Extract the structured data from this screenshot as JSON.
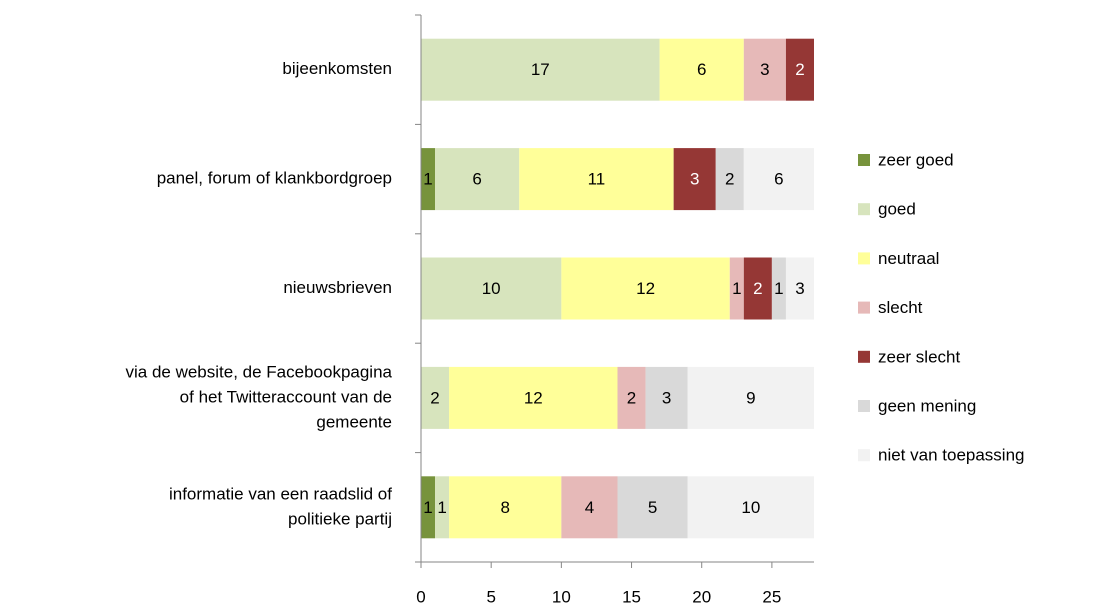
{
  "chart_data": {
    "type": "stacked-barh",
    "categories": [
      [
        "bijeenkomsten"
      ],
      [
        "panel, forum of klankbordgroep"
      ],
      [
        "nieuwsbrieven"
      ],
      [
        "via de  website, de Facebookpagina",
        "of  het Twitteraccount van de",
        "gemeente"
      ],
      [
        "informatie van een raadslid of",
        "politieke partij"
      ]
    ],
    "series": [
      {
        "name": "zeer goed",
        "color": "#77933c",
        "values": [
          0,
          1,
          0,
          0,
          1
        ]
      },
      {
        "name": "goed",
        "color": "#d7e4bd",
        "values": [
          17,
          6,
          10,
          2,
          1
        ]
      },
      {
        "name": "neutraal",
        "color": "#ffff99",
        "values": [
          6,
          11,
          12,
          12,
          8
        ]
      },
      {
        "name": "slecht",
        "color": "#e6b9b8",
        "values": [
          3,
          0,
          1,
          2,
          4
        ]
      },
      {
        "name": "zeer slecht",
        "color": "#953735",
        "values": [
          2,
          3,
          2,
          0,
          0
        ]
      },
      {
        "name": "geen mening",
        "color": "#d9d9d9",
        "values": [
          0,
          2,
          1,
          3,
          5
        ]
      },
      {
        "name": "niet van toepassing",
        "color": "#f2f2f2",
        "values": [
          0,
          6,
          3,
          9,
          10
        ]
      }
    ],
    "xlim": [
      0,
      28
    ],
    "xticks": [
      0,
      5,
      10,
      15,
      20,
      25
    ],
    "legend": "right"
  }
}
